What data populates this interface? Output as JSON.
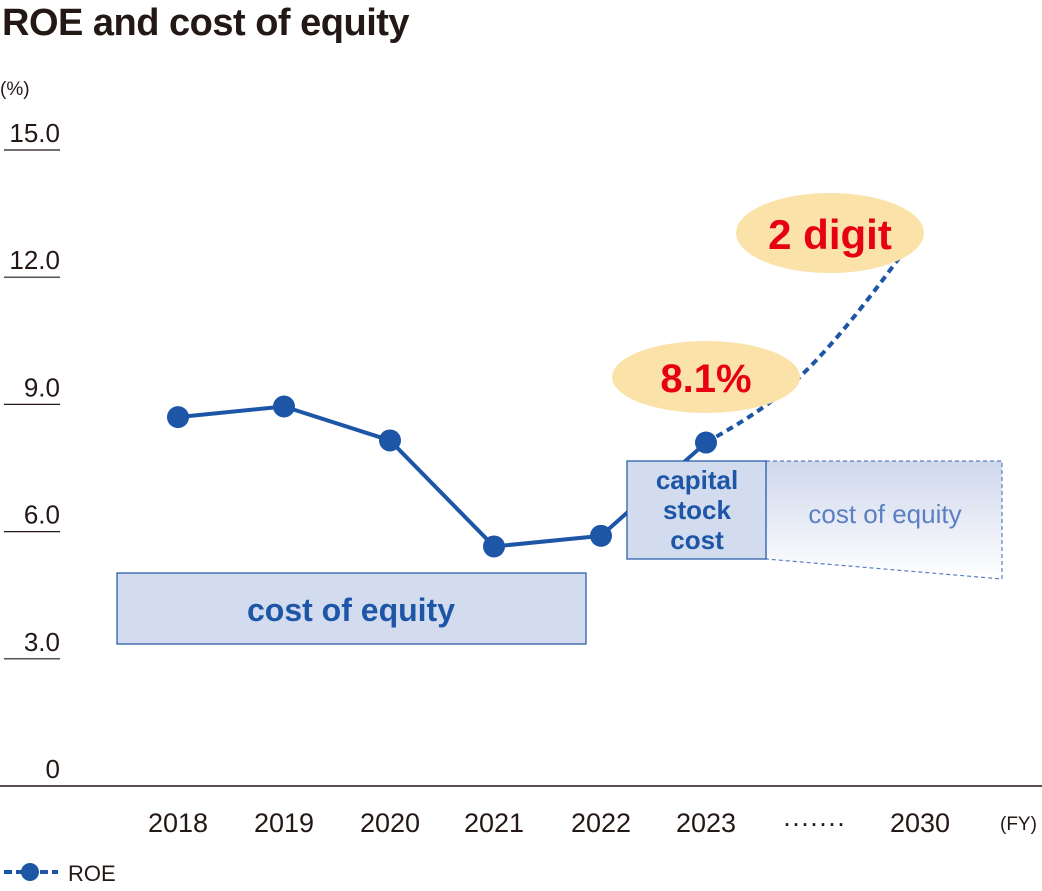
{
  "title": "ROE and cost of equity",
  "chart_data": {
    "type": "line",
    "title": "ROE and cost of equity",
    "y_unit": "(%)",
    "x_unit": "(FY)",
    "ylim": [
      0,
      15
    ],
    "y_ticks": [
      "15.0",
      "12.0",
      "9.0",
      "6.0",
      "3.0",
      "0"
    ],
    "y_tick_values": [
      15,
      12,
      9,
      6,
      3,
      0
    ],
    "categories": [
      "2018",
      "2019",
      "2020",
      "2021",
      "2022",
      "2023",
      "·······",
      "2030"
    ],
    "series": [
      {
        "name": "ROE",
        "color": "#1d56a6",
        "x": [
          "2018",
          "2019",
          "2020",
          "2021",
          "2022",
          "2023"
        ],
        "values": [
          8.7,
          8.95,
          8.15,
          5.65,
          5.9,
          8.1
        ],
        "projection": {
          "from": "2023",
          "to": "2030",
          "to_label": "2 digit",
          "style": "dashed"
        }
      }
    ],
    "annotations": [
      {
        "label": "8.1%",
        "color": "#e60012",
        "background": "#fbe2a8"
      },
      {
        "label": "2 digit",
        "color": "#e60012",
        "background": "#fbe2a8"
      }
    ],
    "bands": [
      {
        "label": "cost of equity",
        "color": "#1d56a6",
        "fill": "#d3dbee"
      },
      {
        "label": "capital stock cost",
        "lines": [
          "capital",
          "stock",
          "cost"
        ],
        "color": "#1d56a6",
        "fill": "#d3dbee"
      },
      {
        "label": "cost of equity",
        "color": "#5a7fc2",
        "fill": "#e9edf7"
      }
    ],
    "legend": {
      "label": "ROE",
      "position": "bottom-left"
    },
    "grid": false
  }
}
